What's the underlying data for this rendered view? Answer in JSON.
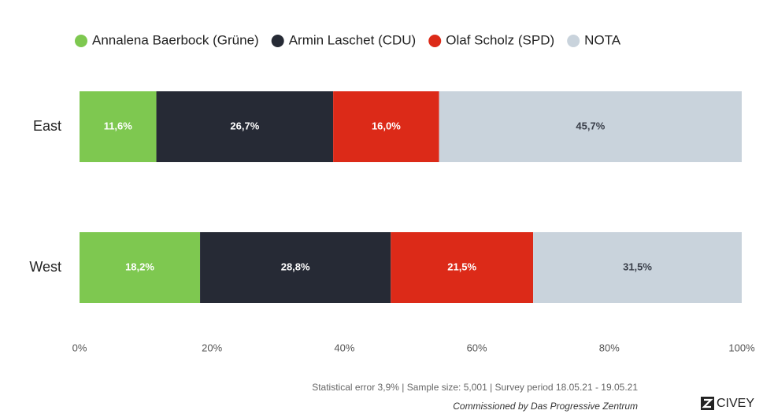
{
  "chart_data": {
    "type": "stacked-barh",
    "categories": [
      "East",
      "West"
    ],
    "series": [
      {
        "name": "Annalena Baerbock (Grüne)",
        "color": "#7ec850",
        "values": [
          11.6,
          18.2
        ],
        "value_labels": [
          "11,6%",
          "18,2%"
        ]
      },
      {
        "name": "Armin Laschet (CDU)",
        "color": "#262a35",
        "values": [
          26.7,
          28.8
        ],
        "value_labels": [
          "26,7%",
          "28,8%"
        ]
      },
      {
        "name": "Olaf Scholz (SPD)",
        "color": "#dc2a18",
        "values": [
          16.0,
          21.5
        ],
        "value_labels": [
          "16,0%",
          "21,5%"
        ]
      },
      {
        "name": "NOTA",
        "color": "#c9d3dc",
        "values": [
          45.7,
          31.5
        ],
        "value_labels": [
          "45,7%",
          "31,5%"
        ]
      }
    ],
    "xlim": [
      0,
      100
    ],
    "xticks": [
      {
        "value": 0,
        "label": "0%"
      },
      {
        "value": 20,
        "label": "20%"
      },
      {
        "value": 40,
        "label": "40%"
      },
      {
        "value": 60,
        "label": "60%"
      },
      {
        "value": 80,
        "label": "80%"
      },
      {
        "value": 100,
        "label": "100%"
      }
    ],
    "legend": "top",
    "footnote": "Statistical error 3,9% | Sample size: 5,001 | Survey period 18.05.21 - 19.05.21",
    "credit": "Commissioned by Das Progressive Zentrum",
    "brand": "CIVEY"
  }
}
